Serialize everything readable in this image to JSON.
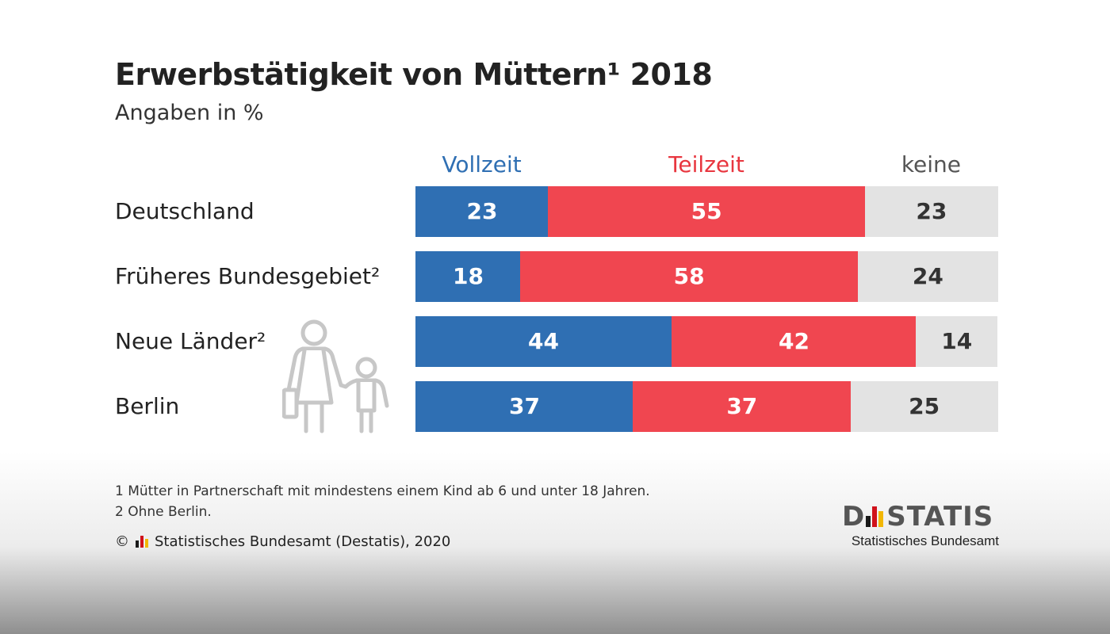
{
  "chart_data": {
    "type": "bar",
    "orientation": "horizontal",
    "stacked": true,
    "title": "Erwerbstätigkeit von Müttern¹ 2018",
    "subtitle": "Angaben in %",
    "categories": [
      "Deutschland",
      "Früheres Bundesgebiet²",
      "Neue Länder²",
      "Berlin"
    ],
    "series": [
      {
        "name": "Vollzeit",
        "color": "#2f6fb3",
        "text_color": "#ffffff",
        "legend_color": "#2f6fb3",
        "values": [
          23,
          18,
          44,
          37
        ]
      },
      {
        "name": "Teilzeit",
        "color": "#f04650",
        "text_color": "#ffffff",
        "legend_color": "#e8363f",
        "values": [
          55,
          58,
          42,
          37
        ]
      },
      {
        "name": "keine",
        "color": "#e3e3e3",
        "text_color": "#333333",
        "legend_color": "#555555",
        "values": [
          23,
          24,
          14,
          25
        ]
      }
    ],
    "legend_position": "top",
    "grid": false
  },
  "footnotes": [
    "1  Mütter in Partnerschaft mit mindestens einem Kind ab 6 und unter 18 Jahren.",
    "2  Ohne Berlin."
  ],
  "source": {
    "copyright": "©",
    "text": "Statistisches Bundesamt (Destatis), 2020"
  },
  "logo": {
    "word_prefix": "D",
    "word_suffix": "STATIS",
    "subline": "Statistisches Bundesamt"
  },
  "colors": {
    "flag_black": "#1a1a1a",
    "flag_red": "#d0121b",
    "flag_gold": "#f2b705",
    "icon_gray": "#c7c7c7"
  },
  "icons": {
    "illustration": "mother-with-child-icon"
  }
}
